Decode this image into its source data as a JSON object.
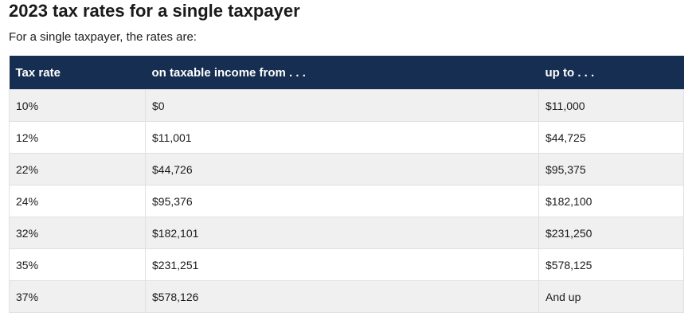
{
  "header": {
    "title": "2023 tax rates for a single taxpayer",
    "intro": "For a single taxpayer, the rates are:"
  },
  "table": {
    "columns": [
      "Tax rate",
      "on taxable income from . . .",
      "up to . . ."
    ],
    "rows": [
      [
        "10%",
        "$0",
        "$11,000"
      ],
      [
        "12%",
        "$11,001",
        "$44,725"
      ],
      [
        "22%",
        "$44,726",
        "$95,375"
      ],
      [
        "24%",
        "$95,376",
        "$182,100"
      ],
      [
        "32%",
        "$182,101",
        "$231,250"
      ],
      [
        "35%",
        "$231,251",
        "$578,125"
      ],
      [
        "37%",
        "$578,126",
        "And up"
      ]
    ]
  },
  "colors": {
    "header_bg": "#162e51",
    "header_text": "#ffffff",
    "row_alt_bg": "#f0f0f0",
    "row_bg": "#ffffff",
    "border": "#dfe1e2"
  }
}
